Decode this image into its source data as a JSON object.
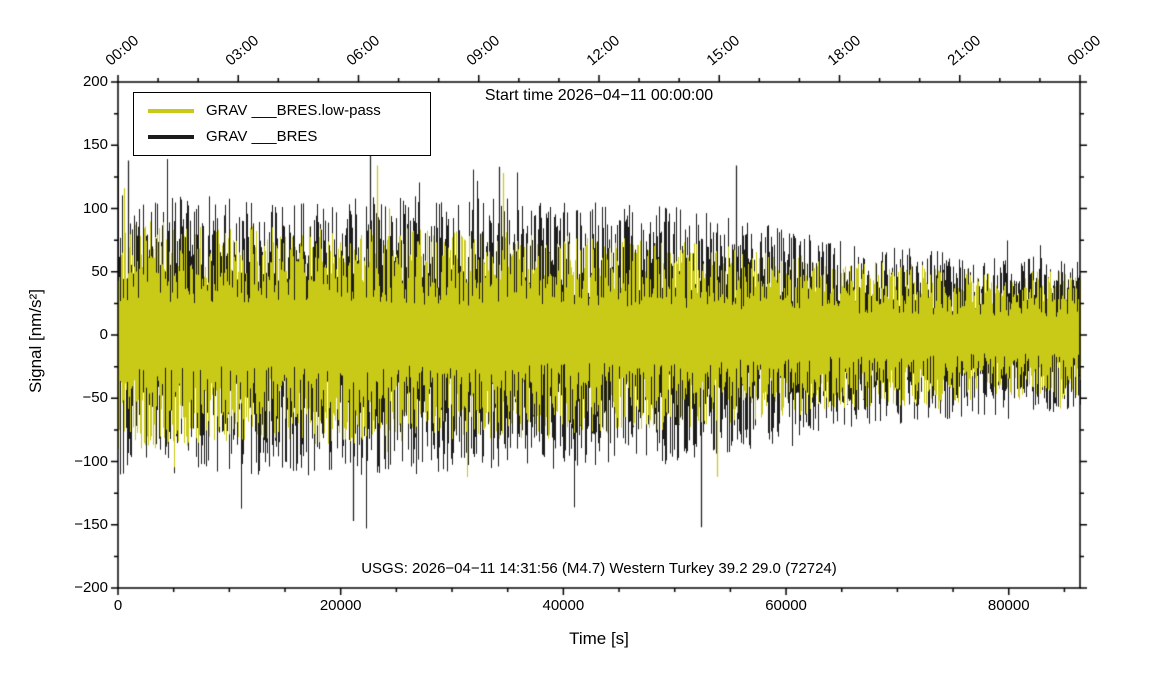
{
  "chart_data": {
    "type": "line",
    "title": "Start time 2026−04−11 00:00:00",
    "xlabel": "Time [s]",
    "ylabel": "Signal [nm/s²]",
    "xlim": [
      0,
      86400
    ],
    "ylim": [
      -200,
      200
    ],
    "grid": false,
    "legend_position": "top-left",
    "x_ticks_bottom": {
      "major": [
        0,
        20000,
        40000,
        60000,
        80000
      ],
      "labels": [
        "0",
        "20000",
        "40000",
        "60000",
        "80000"
      ],
      "minor_step": 5000
    },
    "y_ticks": {
      "major": [
        -200,
        -150,
        -100,
        -50,
        0,
        50,
        100,
        150,
        200
      ],
      "labels": [
        "−200",
        "−150",
        "−100",
        "−50",
        "0",
        "50",
        "100",
        "150",
        "200"
      ],
      "minor_step": 25
    },
    "x_ticks_top": {
      "seconds": [
        0,
        10800,
        21600,
        32400,
        43200,
        54000,
        64800,
        75600,
        86400
      ],
      "labels": [
        "00:00",
        "03:00",
        "06:00",
        "09:00",
        "12:00",
        "15:00",
        "18:00",
        "21:00",
        "00:00"
      ],
      "minor_step": 3600
    },
    "legend": [
      {
        "label": "GRAV ___BRES.low-pass",
        "color": "#c9c918"
      },
      {
        "label": "GRAV ___BRES",
        "color": "#1c1c1c"
      }
    ],
    "annotation": "USGS: 2026−04−11 14:31:56 (M4.7) Western Turkey 39.2 29.0 (72724)",
    "series": [
      {
        "name": "GRAV ___BRES",
        "color": "#1c1c1c",
        "render": "noise-band",
        "seed": 987654321,
        "envelope_t": [
          0,
          8000,
          20000,
          35000,
          50000,
          58000,
          68000,
          78000,
          86400
        ],
        "envelope_amp": [
          112,
          110,
          112,
          108,
          102,
          88,
          72,
          64,
          60
        ],
        "spikes": [
          {
            "t": 900,
            "a": 138
          },
          {
            "t": 21100,
            "a": -147
          },
          {
            "t": 22600,
            "a": 146
          },
          {
            "t": 34200,
            "a": 133
          },
          {
            "t": 52400,
            "a": -152
          },
          {
            "t": 55500,
            "a": 134
          }
        ]
      },
      {
        "name": "GRAV ___BRES.low-pass",
        "color": "#c9c918",
        "render": "noise-band",
        "seed": 123456789,
        "envelope_t": [
          0,
          8000,
          20000,
          35000,
          50000,
          58000,
          68000,
          78000,
          86400
        ],
        "envelope_amp": [
          92,
          88,
          86,
          82,
          76,
          66,
          58,
          52,
          50
        ],
        "spikes": [
          {
            "t": 500,
            "a": 116
          },
          {
            "t": 23300,
            "a": 134
          },
          {
            "t": 34600,
            "a": 128
          },
          {
            "t": 53800,
            "a": -112
          }
        ]
      }
    ]
  }
}
